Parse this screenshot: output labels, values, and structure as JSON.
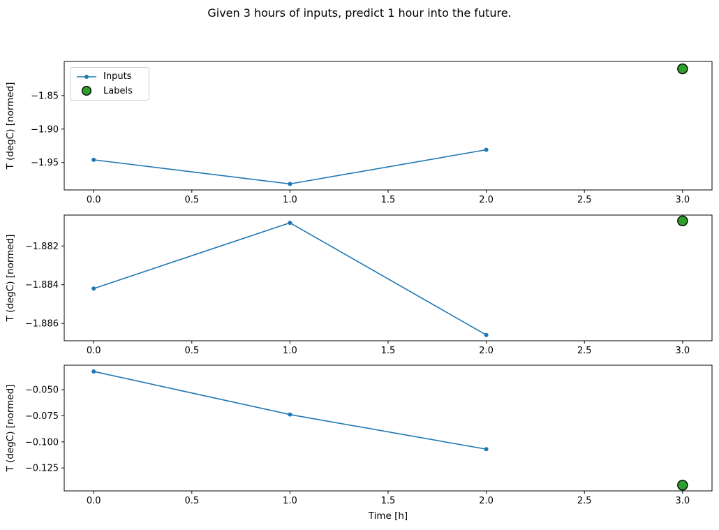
{
  "title": "Given 3 hours of inputs, predict 1 hour into the future.",
  "xlabel": "Time [h]",
  "legend": {
    "inputs": "Inputs",
    "labels": "Labels"
  },
  "colors": {
    "inputs": "#1f77b4",
    "labels": "#2ca02c",
    "marker_edge": "#000000",
    "axis": "#000000",
    "legend_border": "#cccccc",
    "background": "#ffffff"
  },
  "chart_data": [
    {
      "type": "line",
      "ylabel": "T (degC) [normed]",
      "xlim": [
        -0.15,
        3.15
      ],
      "ylim": [
        -1.991,
        -1.799
      ],
      "grid": false,
      "legend_position": "upper left",
      "xticks": {
        "values": [
          0,
          0.5,
          1,
          1.5,
          2,
          2.5,
          3
        ],
        "labels": [
          "0.0",
          "0.5",
          "1.0",
          "1.5",
          "2.0",
          "2.5",
          "3.0"
        ]
      },
      "yticks": {
        "values": [
          -1.85,
          -1.9,
          -1.95
        ],
        "labels": [
          "−1.85",
          "−1.90",
          "−1.95"
        ]
      },
      "series": [
        {
          "name": "Inputs",
          "type": "line",
          "x": [
            0,
            1,
            2
          ],
          "y": [
            -1.946,
            -1.982,
            -1.931
          ]
        },
        {
          "name": "Labels",
          "type": "scatter",
          "x": [
            3
          ],
          "y": [
            -1.81
          ]
        }
      ]
    },
    {
      "type": "line",
      "ylabel": "T (degC) [normed]",
      "xlim": [
        -0.15,
        3.15
      ],
      "ylim": [
        -1.8869,
        -1.8804
      ],
      "grid": false,
      "xticks": {
        "values": [
          0,
          0.5,
          1,
          1.5,
          2,
          2.5,
          3
        ],
        "labels": [
          "0.0",
          "0.5",
          "1.0",
          "1.5",
          "2.0",
          "2.5",
          "3.0"
        ]
      },
      "yticks": {
        "values": [
          -1.882,
          -1.884,
          -1.886
        ],
        "labels": [
          "−1.882",
          "−1.884",
          "−1.886"
        ]
      },
      "series": [
        {
          "name": "Inputs",
          "type": "line",
          "x": [
            0,
            1,
            2
          ],
          "y": [
            -1.8842,
            -1.8808,
            -1.8866
          ]
        },
        {
          "name": "Labels",
          "type": "scatter",
          "x": [
            3
          ],
          "y": [
            -1.8807
          ]
        }
      ]
    },
    {
      "type": "line",
      "ylabel": "T (degC) [normed]",
      "xlim": [
        -0.15,
        3.15
      ],
      "ylim": [
        -0.147,
        -0.0265
      ],
      "grid": false,
      "xticks": {
        "values": [
          0,
          0.5,
          1,
          1.5,
          2,
          2.5,
          3
        ],
        "labels": [
          "0.0",
          "0.5",
          "1.0",
          "1.5",
          "2.0",
          "2.5",
          "3.0"
        ]
      },
      "yticks": {
        "values": [
          -0.05,
          -0.075,
          -0.1,
          -0.125
        ],
        "labels": [
          "−0.050",
          "−0.075",
          "−0.100",
          "−0.125"
        ]
      },
      "series": [
        {
          "name": "Inputs",
          "type": "line",
          "x": [
            0,
            1,
            2
          ],
          "y": [
            -0.0325,
            -0.0738,
            -0.107
          ]
        },
        {
          "name": "Labels",
          "type": "scatter",
          "x": [
            3
          ],
          "y": [
            -0.1415
          ]
        }
      ]
    }
  ]
}
